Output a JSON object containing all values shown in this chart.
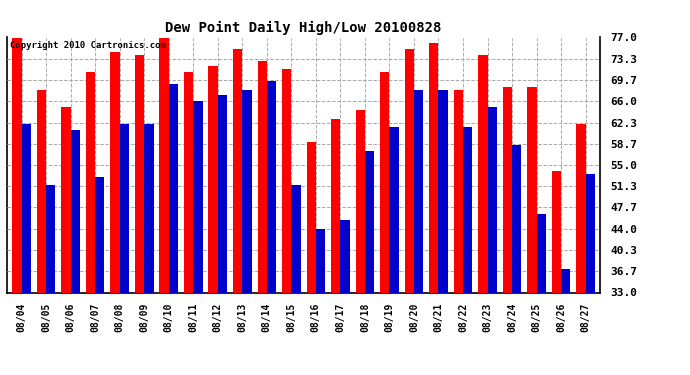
{
  "title": "Dew Point Daily High/Low 20100828",
  "copyright": "Copyright 2010 Cartronics.com",
  "dates": [
    "08/04",
    "08/05",
    "08/06",
    "08/07",
    "08/08",
    "08/09",
    "08/10",
    "08/11",
    "08/12",
    "08/13",
    "08/14",
    "08/15",
    "08/16",
    "08/17",
    "08/18",
    "08/19",
    "08/20",
    "08/21",
    "08/22",
    "08/23",
    "08/24",
    "08/25",
    "08/26",
    "08/27"
  ],
  "highs": [
    77.0,
    68.0,
    65.0,
    71.0,
    74.5,
    74.0,
    77.0,
    71.0,
    72.0,
    75.0,
    73.0,
    71.5,
    59.0,
    63.0,
    64.5,
    71.0,
    75.0,
    76.0,
    68.0,
    74.0,
    68.5,
    68.5,
    54.0,
    62.0
  ],
  "lows": [
    62.0,
    51.5,
    61.0,
    53.0,
    62.0,
    62.0,
    69.0,
    66.0,
    67.0,
    68.0,
    69.5,
    51.5,
    44.0,
    45.5,
    57.5,
    61.5,
    68.0,
    68.0,
    61.5,
    65.0,
    58.5,
    46.5,
    37.0,
    53.5
  ],
  "high_color": "#ff0000",
  "low_color": "#0000cc",
  "bg_color": "#ffffff",
  "grid_color": "#aaaaaa",
  "yticks": [
    33.0,
    36.7,
    40.3,
    44.0,
    47.7,
    51.3,
    55.0,
    58.7,
    62.3,
    66.0,
    69.7,
    73.3,
    77.0
  ],
  "ymin": 33.0,
  "ymax": 77.0,
  "bar_width": 0.38,
  "figsize": [
    6.9,
    3.75
  ],
  "dpi": 100
}
